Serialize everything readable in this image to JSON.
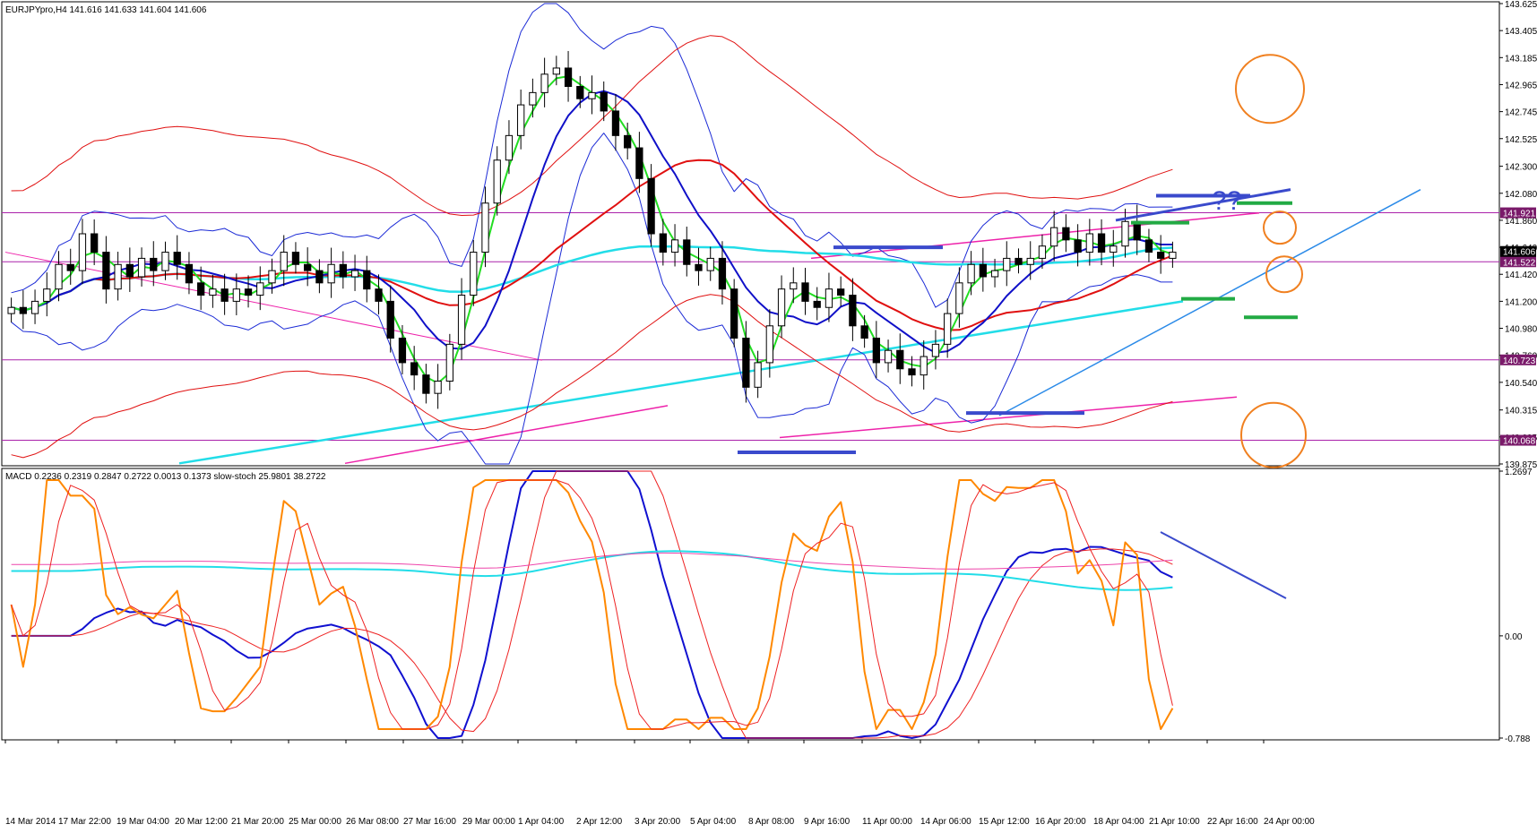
{
  "window": {
    "header": "EURJPYpro,H4  141.616 141.633 141.604 141.606",
    "macd_header": "MACD 0.2236 0.2319 0.2847 0.2722 0.0013 0.1373  slow-stoch 25.9801 38.2722",
    "annotation_text": "??"
  },
  "colors": {
    "background": "#ffffff",
    "candle_up_fill": "#ffffff",
    "candle_down_fill": "#000000",
    "candle_outline": "#000000",
    "bollinger": "#1c2bd6",
    "ma_fast": "#22dd22",
    "ma_mid": "#1010c8",
    "ma_slow": "#e01010",
    "ma_long": "#22dde8",
    "level_lines": "#aa22aa",
    "level_label_bg": "#7a1a6a",
    "current_price_bg": "#000000",
    "trend_magenta": "#ee22aa",
    "trend_blue": "#2a8ae8",
    "annotation_blue": "#3a4acc",
    "annotation_green": "#22aa44",
    "circle_orange": "#f08020",
    "stoch_main": "#ff8800",
    "stoch_signal": "#ee2222",
    "macd_main": "#1010d0",
    "macd_signal": "#ee2222",
    "macd_ma_cyan": "#22dde8",
    "macd_ma_magenta": "#ee44aa"
  },
  "chart_data": [
    {
      "type": "candlestick",
      "symbol": "EURJPYpro",
      "timeframe": "H4",
      "ohlc_readout": [
        141.616,
        141.633,
        141.604,
        141.606
      ],
      "ylim": [
        139.875,
        143.625
      ],
      "price_ticks": [
        "143.625",
        "143.405",
        "143.185",
        "142.965",
        "142.745",
        "142.525",
        "142.300",
        "142.080",
        "141.860",
        "141.640",
        "141.420",
        "141.200",
        "140.980",
        "140.760",
        "140.540",
        "140.315",
        "140.095",
        "139.875"
      ],
      "x_tick_labels": [
        "14 Mar 2014",
        "17 Mar 22:00",
        "19 Mar 04:00",
        "20 Mar 12:00",
        "21 Mar 20:00",
        "25 Mar 00:00",
        "26 Mar 08:00",
        "27 Mar 16:00",
        "29 Mar 00:00",
        "1 Apr 04:00",
        "2 Apr 12:00",
        "3 Apr 20:00",
        "5 Apr 04:00",
        "8 Apr 08:00",
        "9 Apr 16:00",
        "11 Apr 00:00",
        "14 Apr 06:00",
        "15 Apr 12:00",
        "16 Apr 20:00",
        "18 Apr 04:00",
        "21 Apr 10:00",
        "22 Apr 16:00",
        "24 Apr 00:00"
      ],
      "horizontal_levels": [
        141.921,
        141.522,
        140.723,
        140.068
      ],
      "current_price": 141.606,
      "close_series": [
        141.15,
        141.1,
        141.2,
        141.3,
        141.5,
        141.45,
        141.75,
        141.6,
        141.3,
        141.5,
        141.4,
        141.55,
        141.45,
        141.6,
        141.5,
        141.35,
        141.25,
        141.3,
        141.2,
        141.3,
        141.25,
        141.35,
        141.45,
        141.6,
        141.5,
        141.45,
        141.35,
        141.5,
        141.4,
        141.45,
        141.3,
        141.2,
        140.9,
        140.7,
        140.6,
        140.45,
        140.55,
        140.85,
        141.25,
        141.6,
        142.0,
        142.35,
        142.55,
        142.8,
        142.9,
        143.05,
        143.1,
        142.95,
        142.85,
        142.9,
        142.75,
        142.55,
        142.45,
        142.2,
        141.75,
        141.6,
        141.7,
        141.5,
        141.45,
        141.55,
        141.3,
        140.9,
        140.5,
        140.7,
        141.0,
        141.3,
        141.35,
        141.2,
        141.15,
        141.3,
        141.25,
        141.0,
        140.9,
        140.7,
        140.8,
        140.65,
        140.6,
        140.75,
        140.85,
        141.1,
        141.35,
        141.5,
        141.4,
        141.45,
        141.55,
        141.5,
        141.55,
        141.65,
        141.8,
        141.7,
        141.6,
        141.75,
        141.6,
        141.65,
        141.85,
        141.7,
        141.6,
        141.55,
        141.6
      ]
    },
    {
      "type": "line",
      "indicator": "MACD + slow stochastic",
      "macd_values": [
        0.2236,
        0.2319,
        0.2847,
        0.2722,
        0.0013,
        0.1373
      ],
      "stoch_values": [
        25.9801,
        38.2722
      ],
      "ylim": [
        -0.788,
        1.2697
      ],
      "y_ticks": [
        "1.2697",
        "0.00",
        "-0.788"
      ]
    }
  ]
}
